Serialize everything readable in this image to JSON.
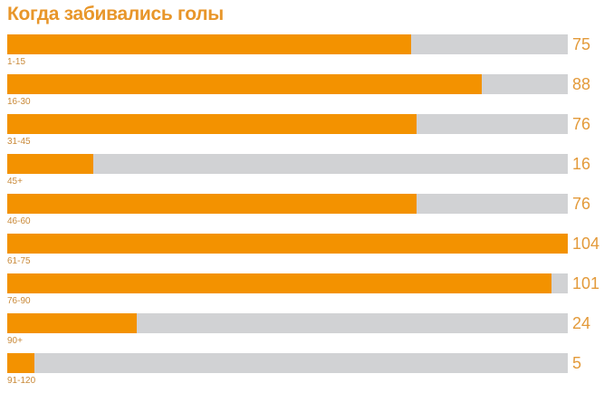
{
  "chart_data": {
    "type": "bar",
    "orientation": "horizontal",
    "title": "Когда забивались голы",
    "categories": [
      "1-15",
      "16-30",
      "31-45",
      "45+",
      "46-60",
      "61-75",
      "76-90",
      "90+",
      "91-120"
    ],
    "values": [
      75,
      88,
      76,
      16,
      76,
      104,
      101,
      24,
      5
    ],
    "xlim": [
      0,
      104
    ],
    "xlabel": "",
    "ylabel": "",
    "grid": false,
    "colors": {
      "bar": "#F39200",
      "track": "#D1D2D4",
      "text": "#E39A3A"
    }
  }
}
